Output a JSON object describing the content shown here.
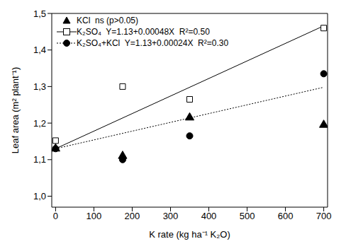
{
  "chart_data": {
    "type": "scatter",
    "x_label": "K rate (kg ha⁻¹ K₂O)",
    "y_label": "Leaf area (m² plant⁻¹)",
    "xlim": [
      -10,
      710
    ],
    "xticks": [
      0,
      100,
      200,
      300,
      400,
      500,
      600,
      700
    ],
    "ylim": [
      0.97,
      1.5
    ],
    "yticks": [
      {
        "value": 1.0,
        "label": "1,0"
      },
      {
        "value": 1.1,
        "label": "1,1"
      },
      {
        "value": 1.2,
        "label": "1,2"
      },
      {
        "value": 1.3,
        "label": "1,3"
      },
      {
        "value": 1.4,
        "label": "1,4"
      },
      {
        "value": 1.5,
        "label": "1,5"
      }
    ],
    "legend": "upper left",
    "series": [
      {
        "name": "KCl",
        "annotation": "ns (p>0.05)",
        "marker": "triangle",
        "color": "#000000",
        "x": [
          0,
          175,
          350,
          700
        ],
        "values": [
          1.13,
          1.11,
          1.215,
          1.195
        ]
      },
      {
        "name": "K₂SO₄",
        "annotation": "Y=1.13+0.00048X  R²=0.50",
        "marker": "open_square",
        "color": "#000000",
        "x": [
          0,
          175,
          350,
          700
        ],
        "values": [
          1.152,
          1.3,
          1.265,
          1.46
        ],
        "fit": {
          "x": [
            0,
            700
          ],
          "values": [
            1.13,
            1.466
          ],
          "line_style": "solid"
        }
      },
      {
        "name": "K₂SO₄+KCl",
        "annotation": "Y=1.13+0.00024X  R²=0.30",
        "marker": "circle",
        "color": "#000000",
        "x": [
          0,
          175,
          350,
          700
        ],
        "values": [
          1.13,
          1.1,
          1.165,
          1.335
        ],
        "fit": {
          "x": [
            0,
            700
          ],
          "values": [
            1.13,
            1.298
          ],
          "line_style": "dotted"
        }
      }
    ]
  }
}
